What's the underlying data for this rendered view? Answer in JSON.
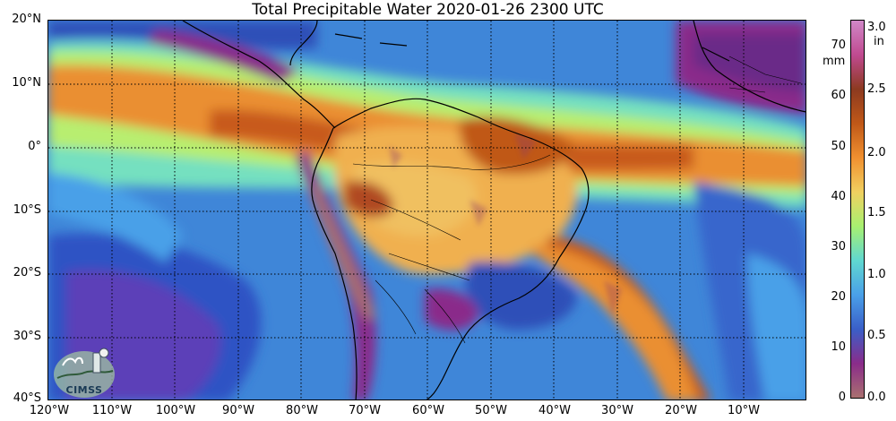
{
  "title": "Total Precipitable Water  2020-01-26 2300 UTC",
  "lat_labels": [
    "20°N",
    "10°N",
    "0°",
    "10°S",
    "20°S",
    "30°S",
    "40°S"
  ],
  "lon_labels": [
    "120°W",
    "110°W",
    "100°W",
    "90°W",
    "80°W",
    "70°W",
    "60°W",
    "50°W",
    "40°W",
    "30°W",
    "20°W",
    "10°W"
  ],
  "colorbar": {
    "mm_unit": "mm",
    "in_unit": "in",
    "mm_ticks": [
      "70",
      "60",
      "50",
      "40",
      "30",
      "20",
      "10",
      "0"
    ],
    "in_ticks": [
      "3.0",
      "2.5",
      "2.0",
      "1.5",
      "1.0",
      "0.5",
      "0.0"
    ],
    "colors": [
      "#a97070",
      "#8a2c8a",
      "#3a5fc8",
      "#4aa0e8",
      "#60d8d0",
      "#a8f070",
      "#f0d060",
      "#f09030",
      "#c05818",
      "#8c3a20",
      "#c04a90",
      "#d088c8"
    ]
  },
  "logo": {
    "text": "CIMSS"
  },
  "map": {
    "background": "#3f86d8",
    "land": "#cf7a38",
    "ocean_deep": "#3a5fc8",
    "moist_band": "#e98a32",
    "very_moist": "#8c3a6a",
    "dry": "#8a2c8a",
    "transition": "#7ce0c8",
    "coastline": "#000000",
    "gridline": "#000000"
  }
}
